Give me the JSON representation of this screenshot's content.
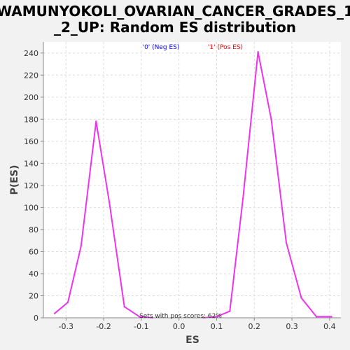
{
  "chart_data": {
    "type": "line",
    "title_line1": "WAMUNYOKOLI_OVARIAN_CANCER_GRADES_1",
    "title_line2": "_2_UP: Random ES distribution",
    "xlabel": "ES",
    "ylabel": "P(ES)",
    "xlim": [
      -0.36,
      0.43
    ],
    "ylim": [
      0,
      250
    ],
    "xticks": [
      -0.3,
      -0.2,
      -0.1,
      0.0,
      0.1,
      0.2,
      0.3,
      0.4
    ],
    "xtick_labels": [
      "-0.3",
      "-0.2",
      "-0.1",
      "0.0",
      "0.1",
      "0.2",
      "0.3",
      "0.4"
    ],
    "yticks": [
      0,
      20,
      40,
      60,
      80,
      100,
      120,
      140,
      160,
      180,
      200,
      220,
      240
    ],
    "ytick_labels": [
      "0",
      "20",
      "40",
      "60",
      "80",
      "100",
      "120",
      "140",
      "160",
      "180",
      "200",
      "220",
      "240"
    ],
    "grid": true,
    "legend": [
      {
        "label": "'0' (Neg ES)",
        "color": "#0000ff"
      },
      {
        "label": "'1' (Pos ES)",
        "color": "#ff0000"
      }
    ],
    "annotation": "Sets with pos scores: 62%",
    "series": [
      {
        "color": "#ee33ee",
        "x": [
          -0.33,
          -0.295,
          -0.26,
          -0.22,
          -0.185,
          -0.145,
          -0.105,
          -0.07
        ],
        "y": [
          4,
          14,
          65,
          178,
          105,
          10,
          1,
          0
        ]
      },
      {
        "color": "#ee33ee",
        "x": [
          0.065,
          0.1,
          0.135,
          0.17,
          0.21,
          0.245,
          0.285,
          0.325,
          0.365,
          0.405
        ],
        "y": [
          0,
          1,
          6,
          108,
          241,
          180,
          68,
          18,
          1,
          1
        ]
      }
    ]
  }
}
